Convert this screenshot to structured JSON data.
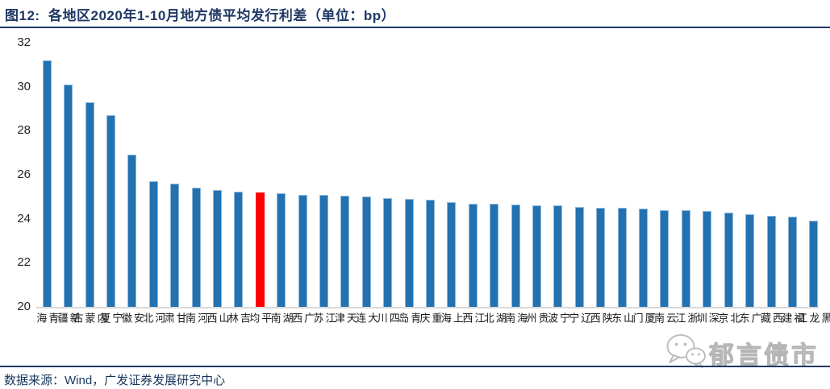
{
  "header": {
    "title": "图12:  各地区2020年1-10月地方债平均发行利差（单位：bp）"
  },
  "watermark": {
    "text": "郁言债市",
    "icon": "wechat-icon"
  },
  "footer": {
    "source": "数据来源：Wind，广发证券发展研究中心"
  },
  "colors": {
    "accent_navy": "#1f3864",
    "bar_blue": "#2272b2",
    "bar_blue_edge": "#8fb8dc",
    "highlight_red": "#fe0000",
    "baseline_gray": "#d9d9d9",
    "watermark_gray": "#c6c6c6",
    "tick_text": "#262626"
  },
  "chart_data": {
    "type": "bar",
    "title": "各地区2020年1-10月地方债平均发行利差",
    "unit": "bp",
    "xlabel": "",
    "ylabel": "",
    "ylim": [
      20,
      32
    ],
    "yticks": [
      20,
      22,
      24,
      26,
      28,
      30,
      32
    ],
    "grid": false,
    "legend": "none",
    "highlight_category": "平均",
    "categories": [
      "青海",
      "新疆",
      "内蒙古",
      "宁夏",
      "安徽",
      "河北",
      "甘肃",
      "河南",
      "山西",
      "吉林",
      "平均",
      "湖南",
      "广西",
      "江苏",
      "天津",
      "大连",
      "四川",
      "青岛",
      "重庆",
      "上海",
      "江西",
      "湖北",
      "海南",
      "贵州",
      "宁波",
      "辽宁",
      "陕西",
      "山东",
      "厦门",
      "云南",
      "浙江",
      "深圳",
      "北京",
      "广东",
      "西藏",
      "福建",
      "黑龙江"
    ],
    "values": [
      31.2,
      30.1,
      29.3,
      28.7,
      26.9,
      25.7,
      25.6,
      25.4,
      25.3,
      25.25,
      25.2,
      25.15,
      25.1,
      25.1,
      25.05,
      25.0,
      24.95,
      24.9,
      24.85,
      24.75,
      24.7,
      24.7,
      24.65,
      24.6,
      24.6,
      24.55,
      24.5,
      24.5,
      24.45,
      24.4,
      24.4,
      24.35,
      24.3,
      24.2,
      24.15,
      24.1,
      23.9
    ]
  }
}
